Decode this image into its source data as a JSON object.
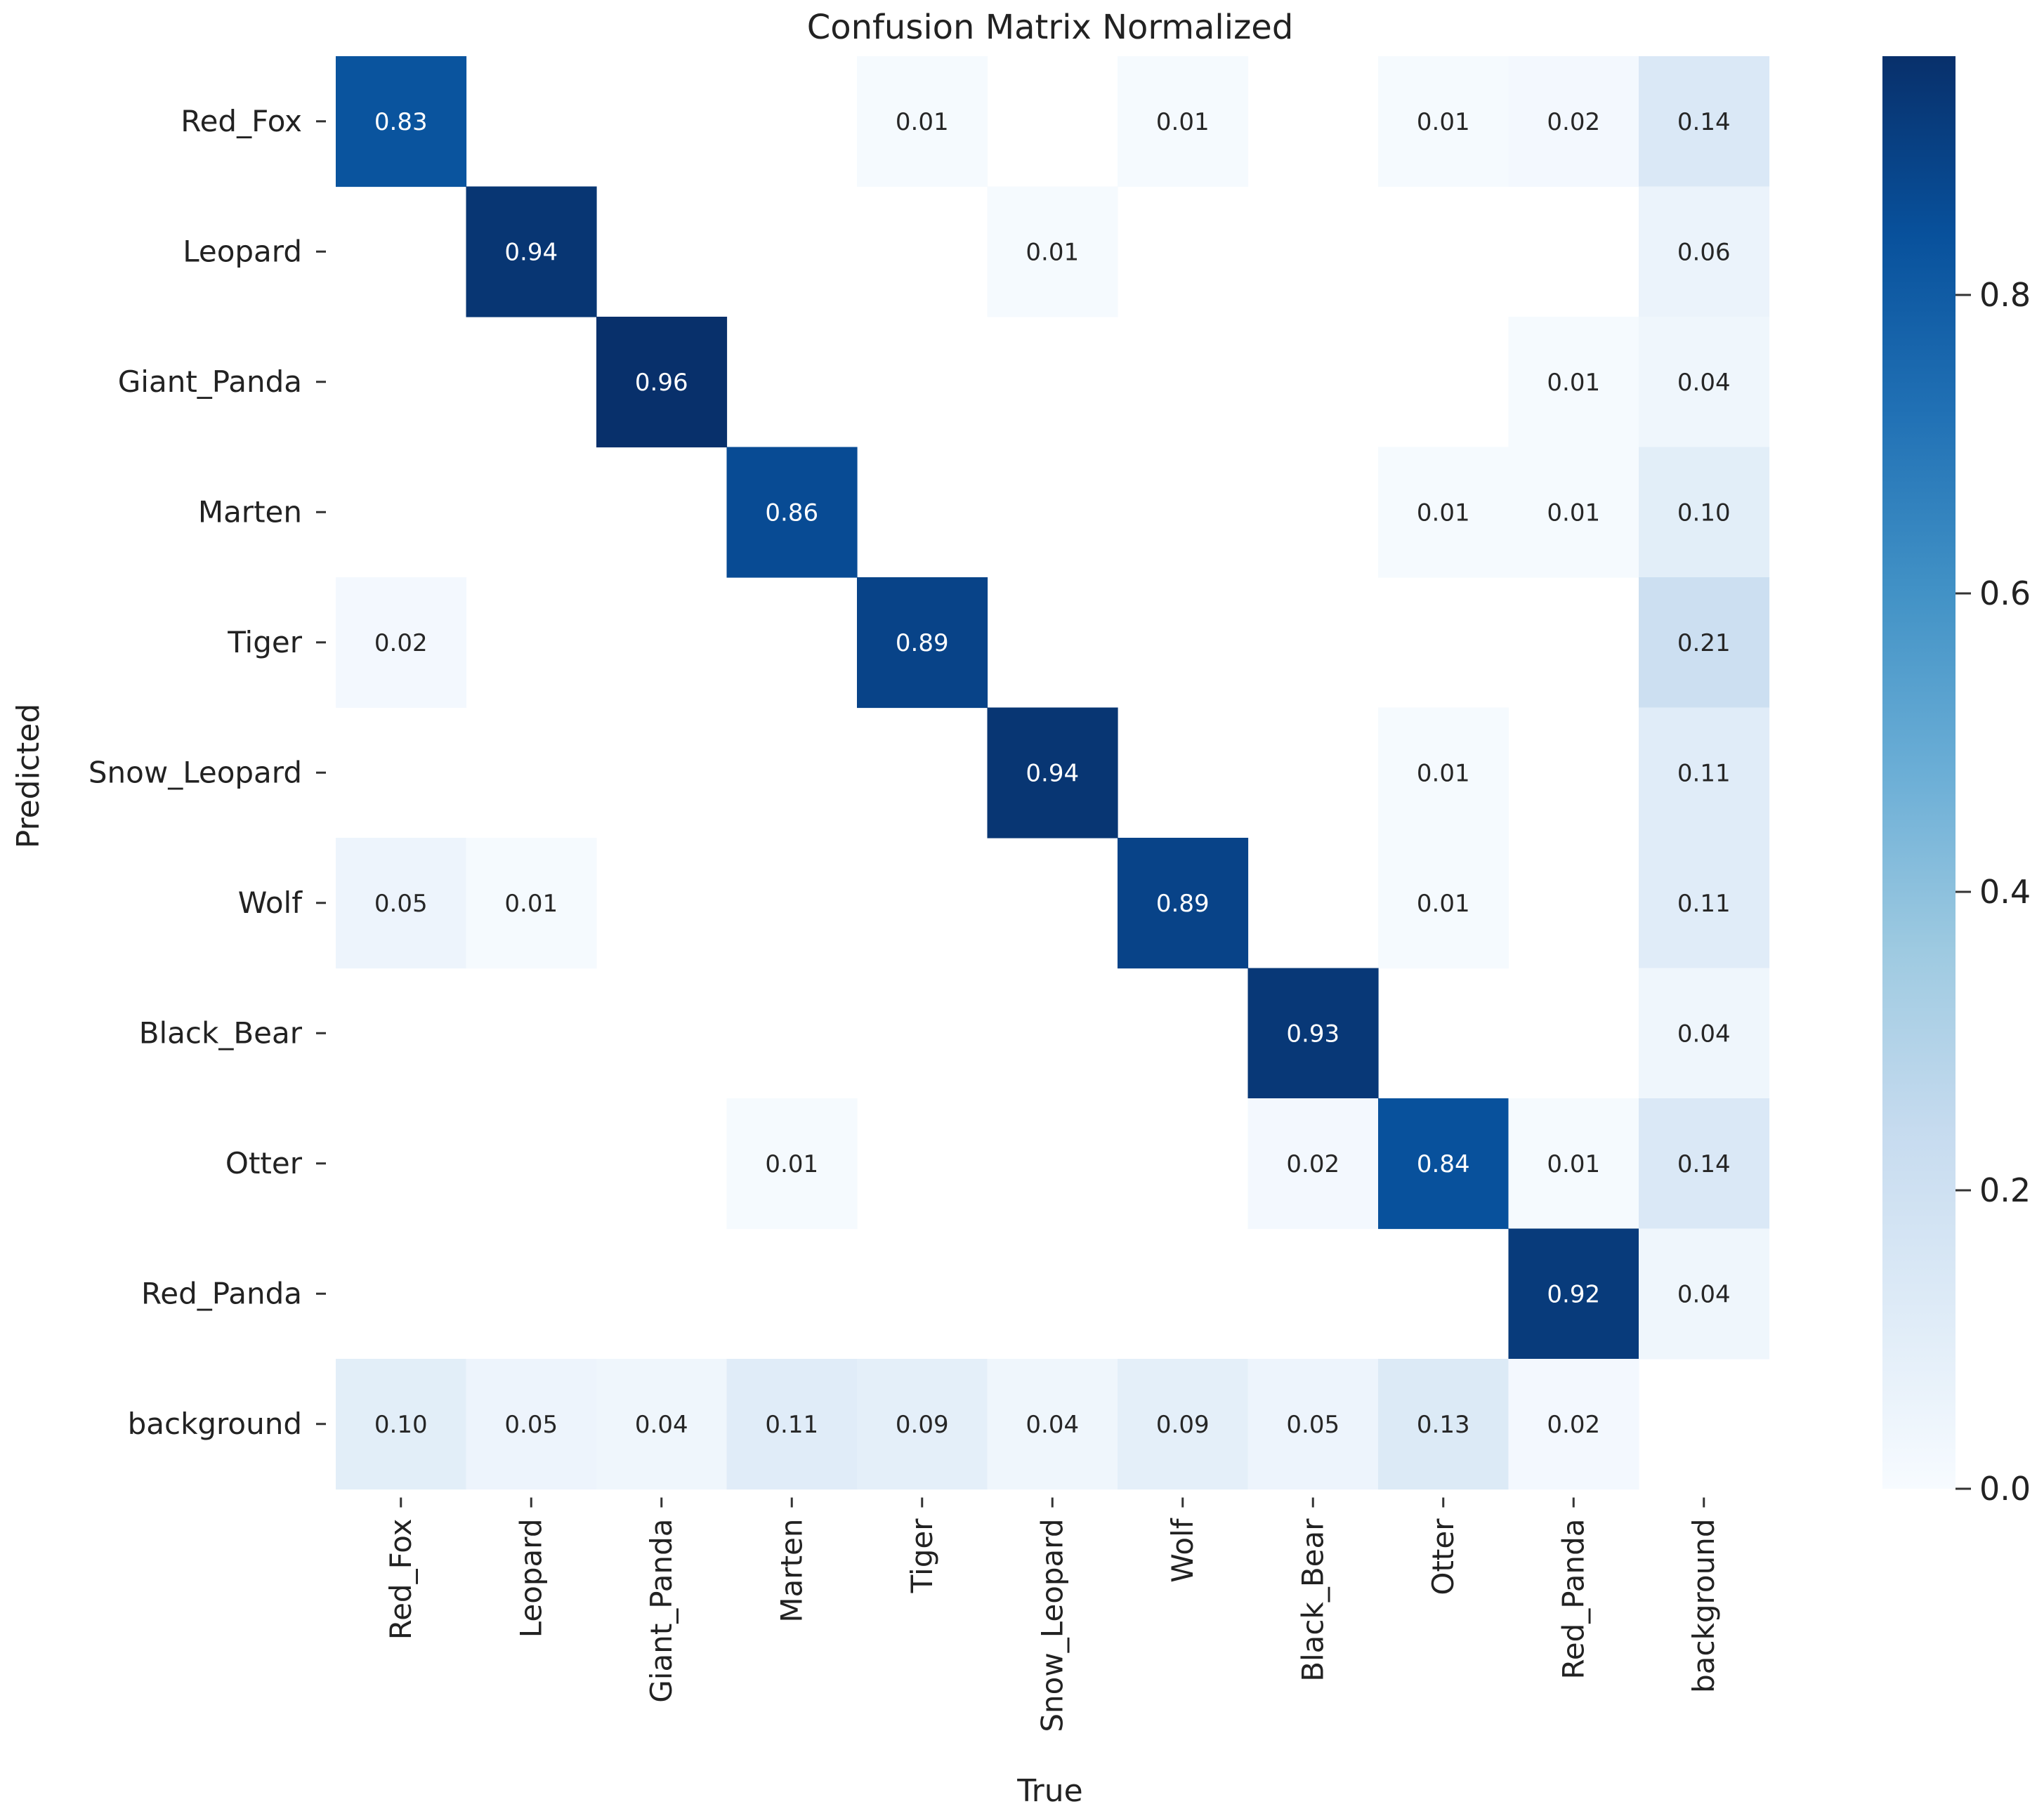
{
  "chart_data": {
    "type": "heatmap",
    "title": "Confusion Matrix Normalized",
    "xlabel": "True",
    "ylabel": "Predicted",
    "x_categories": [
      "Red_Fox",
      "Leopard",
      "Giant_Panda",
      "Marten",
      "Tiger",
      "Snow_Leopard",
      "Wolf",
      "Black_Bear",
      "Otter",
      "Red_Panda",
      "background"
    ],
    "y_categories": [
      "Red_Fox",
      "Leopard",
      "Giant_Panda",
      "Marten",
      "Tiger",
      "Snow_Leopard",
      "Wolf",
      "Black_Bear",
      "Otter",
      "Red_Panda",
      "background"
    ],
    "values": [
      [
        0.83,
        null,
        null,
        null,
        0.01,
        null,
        0.01,
        null,
        0.01,
        0.02,
        0.14
      ],
      [
        null,
        0.94,
        null,
        null,
        null,
        0.01,
        null,
        null,
        null,
        null,
        0.06
      ],
      [
        null,
        null,
        0.96,
        null,
        null,
        null,
        null,
        null,
        null,
        0.01,
        0.04
      ],
      [
        null,
        null,
        null,
        0.86,
        null,
        null,
        null,
        null,
        0.01,
        0.01,
        0.1
      ],
      [
        0.02,
        null,
        null,
        null,
        0.89,
        null,
        null,
        null,
        null,
        null,
        0.21
      ],
      [
        null,
        null,
        null,
        null,
        null,
        0.94,
        null,
        null,
        0.01,
        null,
        0.11
      ],
      [
        0.05,
        0.01,
        null,
        null,
        null,
        null,
        0.89,
        null,
        0.01,
        null,
        0.11
      ],
      [
        null,
        null,
        null,
        null,
        null,
        null,
        null,
        0.93,
        null,
        null,
        0.04
      ],
      [
        null,
        null,
        null,
        0.01,
        null,
        null,
        null,
        0.02,
        0.84,
        0.01,
        0.14
      ],
      [
        null,
        null,
        null,
        null,
        null,
        null,
        null,
        null,
        null,
        0.92,
        0.04
      ],
      [
        0.1,
        0.05,
        0.04,
        0.11,
        0.09,
        0.04,
        0.09,
        0.05,
        0.13,
        0.02,
        null
      ]
    ],
    "colorbar": {
      "range": [
        0.0,
        0.96
      ],
      "ticks": [
        0.0,
        0.2,
        0.4,
        0.6,
        0.8
      ],
      "tick_labels": [
        "0.0",
        "0.2",
        "0.4",
        "0.6",
        "0.8"
      ],
      "colormap": "Blues"
    }
  }
}
